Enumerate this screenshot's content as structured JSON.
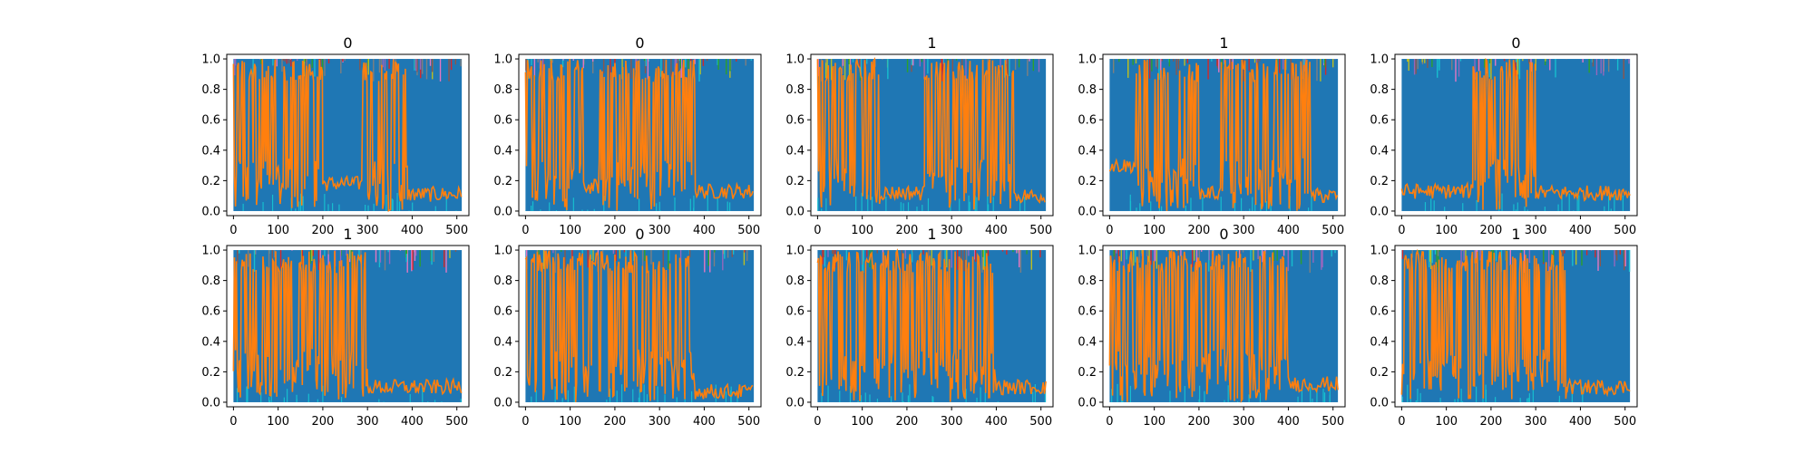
{
  "chart_data": {
    "type": "line",
    "layout": "2 rows x 5 columns of line plots",
    "xlim": [
      -15,
      527
    ],
    "ylim": [
      -0.03,
      1.03
    ],
    "xticks": [
      0,
      100,
      200,
      300,
      400,
      500
    ],
    "yticks": [
      0.0,
      0.2,
      0.4,
      0.6,
      0.8,
      1.0
    ],
    "xtick_labels": [
      "0",
      "100",
      "200",
      "300",
      "400",
      "500"
    ],
    "ytick_labels": [
      "0.0",
      "0.2",
      "0.4",
      "0.6",
      "0.8",
      "1.0"
    ],
    "series_colors": [
      "#1f77b4",
      "#ff7f0e",
      "#2ca02c",
      "#d62728",
      "#9467bd",
      "#8c564b",
      "#e377c2",
      "#7f7f7f",
      "#bcbd22",
      "#17becf"
    ],
    "grid": false,
    "legend": "none",
    "panels": [
      {
        "title": "0",
        "orange_segments": [
          [
            0,
            45,
            0.5
          ],
          [
            45,
            200,
            0.55
          ],
          [
            200,
            290,
            0.18
          ],
          [
            290,
            390,
            0.45
          ],
          [
            390,
            512,
            0.11
          ]
        ]
      },
      {
        "title": "0",
        "orange_segments": [
          [
            0,
            130,
            0.45
          ],
          [
            130,
            165,
            0.16
          ],
          [
            165,
            380,
            0.42
          ],
          [
            380,
            512,
            0.13
          ]
        ]
      },
      {
        "title": "1",
        "orange_segments": [
          [
            0,
            140,
            0.5
          ],
          [
            140,
            240,
            0.12
          ],
          [
            240,
            440,
            0.45
          ],
          [
            440,
            512,
            0.1
          ]
        ]
      },
      {
        "title": "1",
        "orange_segments": [
          [
            0,
            60,
            0.3
          ],
          [
            60,
            200,
            0.45
          ],
          [
            200,
            250,
            0.12
          ],
          [
            250,
            450,
            0.45
          ],
          [
            450,
            512,
            0.1
          ]
        ]
      },
      {
        "title": "0",
        "orange_segments": [
          [
            0,
            160,
            0.13
          ],
          [
            160,
            300,
            0.4
          ],
          [
            300,
            400,
            0.12
          ],
          [
            400,
            512,
            0.12
          ]
        ]
      },
      {
        "title": "1",
        "orange_segments": [
          [
            0,
            300,
            0.5
          ],
          [
            300,
            512,
            0.1
          ]
        ]
      },
      {
        "title": "0",
        "orange_segments": [
          [
            0,
            380,
            0.5
          ],
          [
            380,
            512,
            0.07
          ]
        ]
      },
      {
        "title": "1",
        "orange_segments": [
          [
            0,
            400,
            0.55
          ],
          [
            400,
            512,
            0.1
          ]
        ]
      },
      {
        "title": "0",
        "orange_segments": [
          [
            0,
            400,
            0.5
          ],
          [
            400,
            512,
            0.12
          ]
        ]
      },
      {
        "title": "1",
        "orange_segments": [
          [
            0,
            370,
            0.5
          ],
          [
            370,
            512,
            0.1
          ]
        ]
      }
    ]
  }
}
